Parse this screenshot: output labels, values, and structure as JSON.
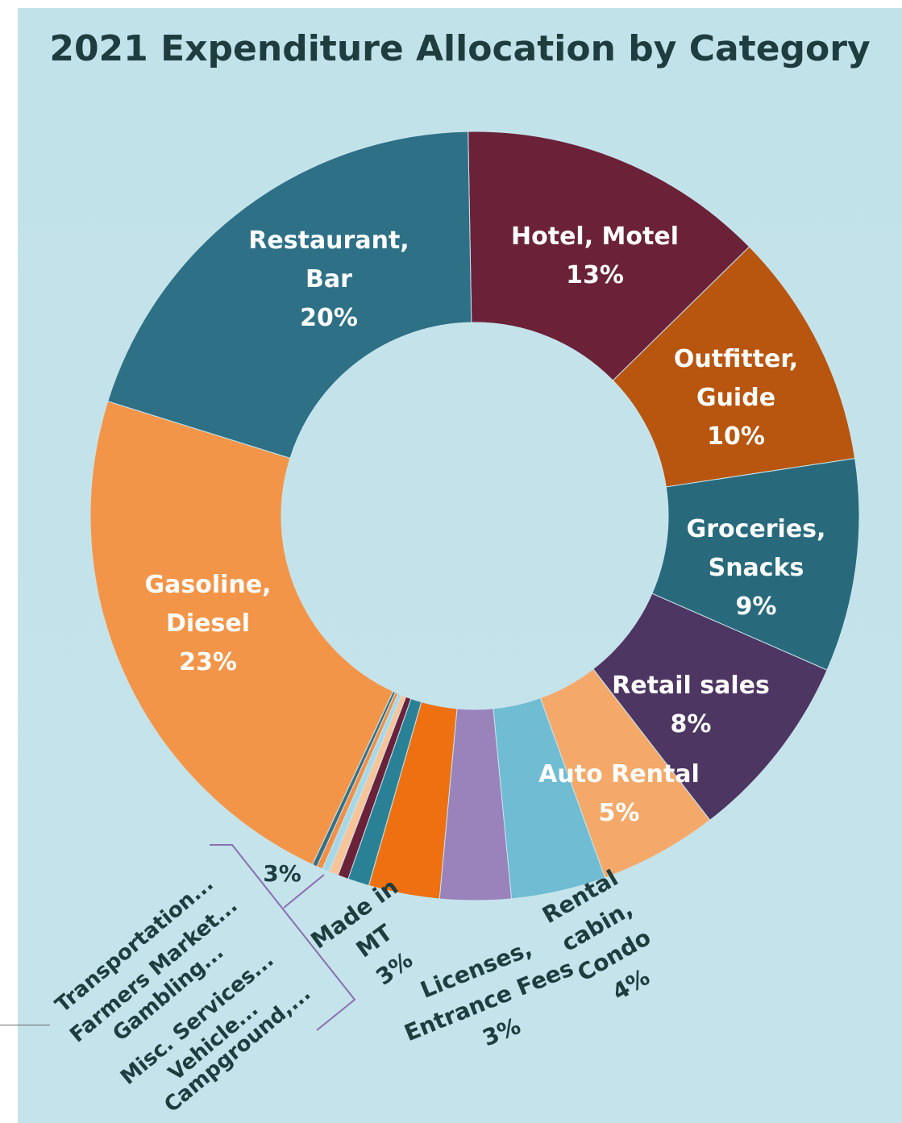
{
  "chart_data": {
    "type": "pie",
    "donut": true,
    "title": "2021 Expenditure Allocation by Category",
    "start_angle_deg": 91,
    "slices": [
      {
        "label_lines": [
          "Hotel, Motel",
          "13%"
        ],
        "value": 13,
        "color": "#6b2239"
      },
      {
        "label_lines": [
          "Outfitter,",
          "Guide",
          "10%"
        ],
        "value": 10,
        "color": "#b8550e"
      },
      {
        "label_lines": [
          "Groceries,",
          "Snacks",
          "9%"
        ],
        "value": 9,
        "color": "#286a7c"
      },
      {
        "label_lines": [
          "Retail sales",
          "8%"
        ],
        "value": 8,
        "color": "#4d3661"
      },
      {
        "label_lines": [
          "Auto Rental",
          "5%"
        ],
        "value": 5,
        "color": "#f4a96a"
      },
      {
        "label_lines": [
          "Rental",
          "cabin,",
          "Condo",
          "4%"
        ],
        "value": 4,
        "color": "#6fbcd3"
      },
      {
        "label_lines": [
          "Licenses,",
          "Entrance Fees",
          "3%"
        ],
        "value": 3,
        "color": "#9a82bb"
      },
      {
        "label_lines": [
          "Made in",
          "MT",
          "3%"
        ],
        "value": 3,
        "color": "#ee7011"
      },
      {
        "label_lines": [
          "Campground,..."
        ],
        "value": 0.9,
        "color": "#2a8196"
      },
      {
        "label_lines": [
          "Vehicle..."
        ],
        "value": 0.45,
        "color": "#6b2239"
      },
      {
        "label_lines": [
          "Misc. Services..."
        ],
        "value": 0.4,
        "color": "#f7c49a"
      },
      {
        "label_lines": [
          "Gambling..."
        ],
        "value": 0.3,
        "color": "#a8d8e8"
      },
      {
        "label_lines": [
          "Farmers Market..."
        ],
        "value": 0.25,
        "color": "#f28f45"
      },
      {
        "label_lines": [
          "Transportation..."
        ],
        "value": 0.2,
        "color": "#3c6e80"
      },
      {
        "label_lines": [
          "Gasoline,",
          "Diesel",
          "23%"
        ],
        "value": 23,
        "color": "#f39549"
      },
      {
        "label_lines": [
          "Restaurant,",
          "Bar",
          "20%"
        ],
        "value": 20,
        "color": "#2e7086"
      }
    ],
    "group_label": "3%",
    "group_members": [
      "Transportation...",
      "Farmers Market...",
      "Gambling...",
      "Misc. Services...",
      "Vehicle...",
      "Campground,..."
    ]
  }
}
